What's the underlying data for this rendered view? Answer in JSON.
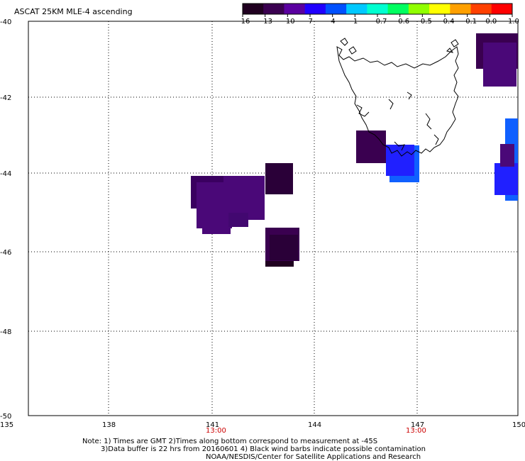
{
  "title": "ASCAT 25KM MLE-4 ascending",
  "colorbar": {
    "labels": [
      "-16",
      "-13",
      "-10",
      "-7",
      "-4",
      "-1",
      "-0.7",
      "-0.6",
      "-0.5",
      "-0.4",
      "-0.1",
      "0.0",
      "1.0"
    ],
    "colors": [
      "#200020",
      "#3a0050",
      "#5a00a0",
      "#2000ff",
      "#0050ff",
      "#00c8ff",
      "#00ffd0",
      "#00ff60",
      "#90ff00",
      "#ffff00",
      "#ffa000",
      "#ff4000",
      "#ff0000"
    ]
  },
  "axes": {
    "lat_labels": [
      "-40",
      "-42",
      "-44",
      "-46",
      "-48",
      "-50"
    ],
    "lon_labels": [
      "135",
      "138",
      "141",
      "144",
      "147",
      "150"
    ],
    "time_labels": [
      {
        "text": "13:00",
        "lon": 141
      },
      {
        "text": "13:00",
        "lon": 147
      }
    ]
  },
  "notes": {
    "line1": "Note: 1) Times are GMT 2)Times along bottom correspond to measurement at -45S",
    "line2": "3)Data buffer is 22 hrs from 20160601 4) Black wind barbs indicate possible contamination",
    "line3": "NOAA/NESDIS/Center for Satellite Applications and Research"
  },
  "colors": {
    "dark_purple": "#2a0038",
    "purple": "#4a0878",
    "blue": "#1a1aff",
    "light_blue": "#1060ff",
    "coast": "#000000"
  }
}
